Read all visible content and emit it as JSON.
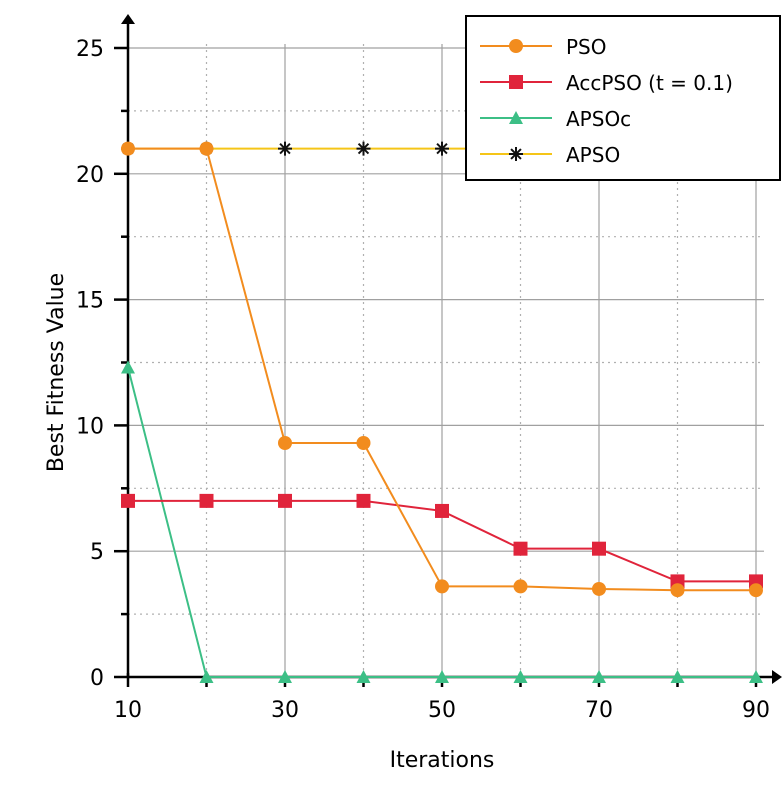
{
  "chart_data": {
    "type": "line",
    "title": "",
    "xlabel": "Iterations",
    "ylabel": "Best Fitness Value",
    "x": [
      10,
      20,
      30,
      40,
      50,
      60,
      70,
      80,
      90
    ],
    "x_tick_labels": [
      "10",
      "30",
      "50",
      "70",
      "90"
    ],
    "y_tick_labels": [
      "0",
      "5",
      "10",
      "15",
      "20",
      "25"
    ],
    "xlim": [
      10,
      90
    ],
    "ylim": [
      0,
      25
    ],
    "grid": true,
    "legend_position": "top-right",
    "series": [
      {
        "name": "PSO",
        "color": "#f28c1e",
        "marker": "circle",
        "values": [
          21,
          21,
          9.3,
          9.3,
          3.6,
          3.6,
          3.5,
          3.45,
          3.45
        ]
      },
      {
        "name": "AccPSO (t = 0.1)",
        "color": "#e0243b",
        "marker": "square",
        "values": [
          7.0,
          7.0,
          7.0,
          7.0,
          6.6,
          5.1,
          5.1,
          3.8,
          3.8
        ]
      },
      {
        "name": "APSOc",
        "color": "#3cbf86",
        "marker": "triangle",
        "values": [
          12.3,
          0,
          0,
          0,
          0,
          0,
          0,
          0,
          0
        ]
      },
      {
        "name": "APSO",
        "color": "#f5c518",
        "marker": "star",
        "values": [
          21,
          21,
          21,
          21,
          21,
          21,
          21,
          21,
          21
        ]
      }
    ]
  }
}
